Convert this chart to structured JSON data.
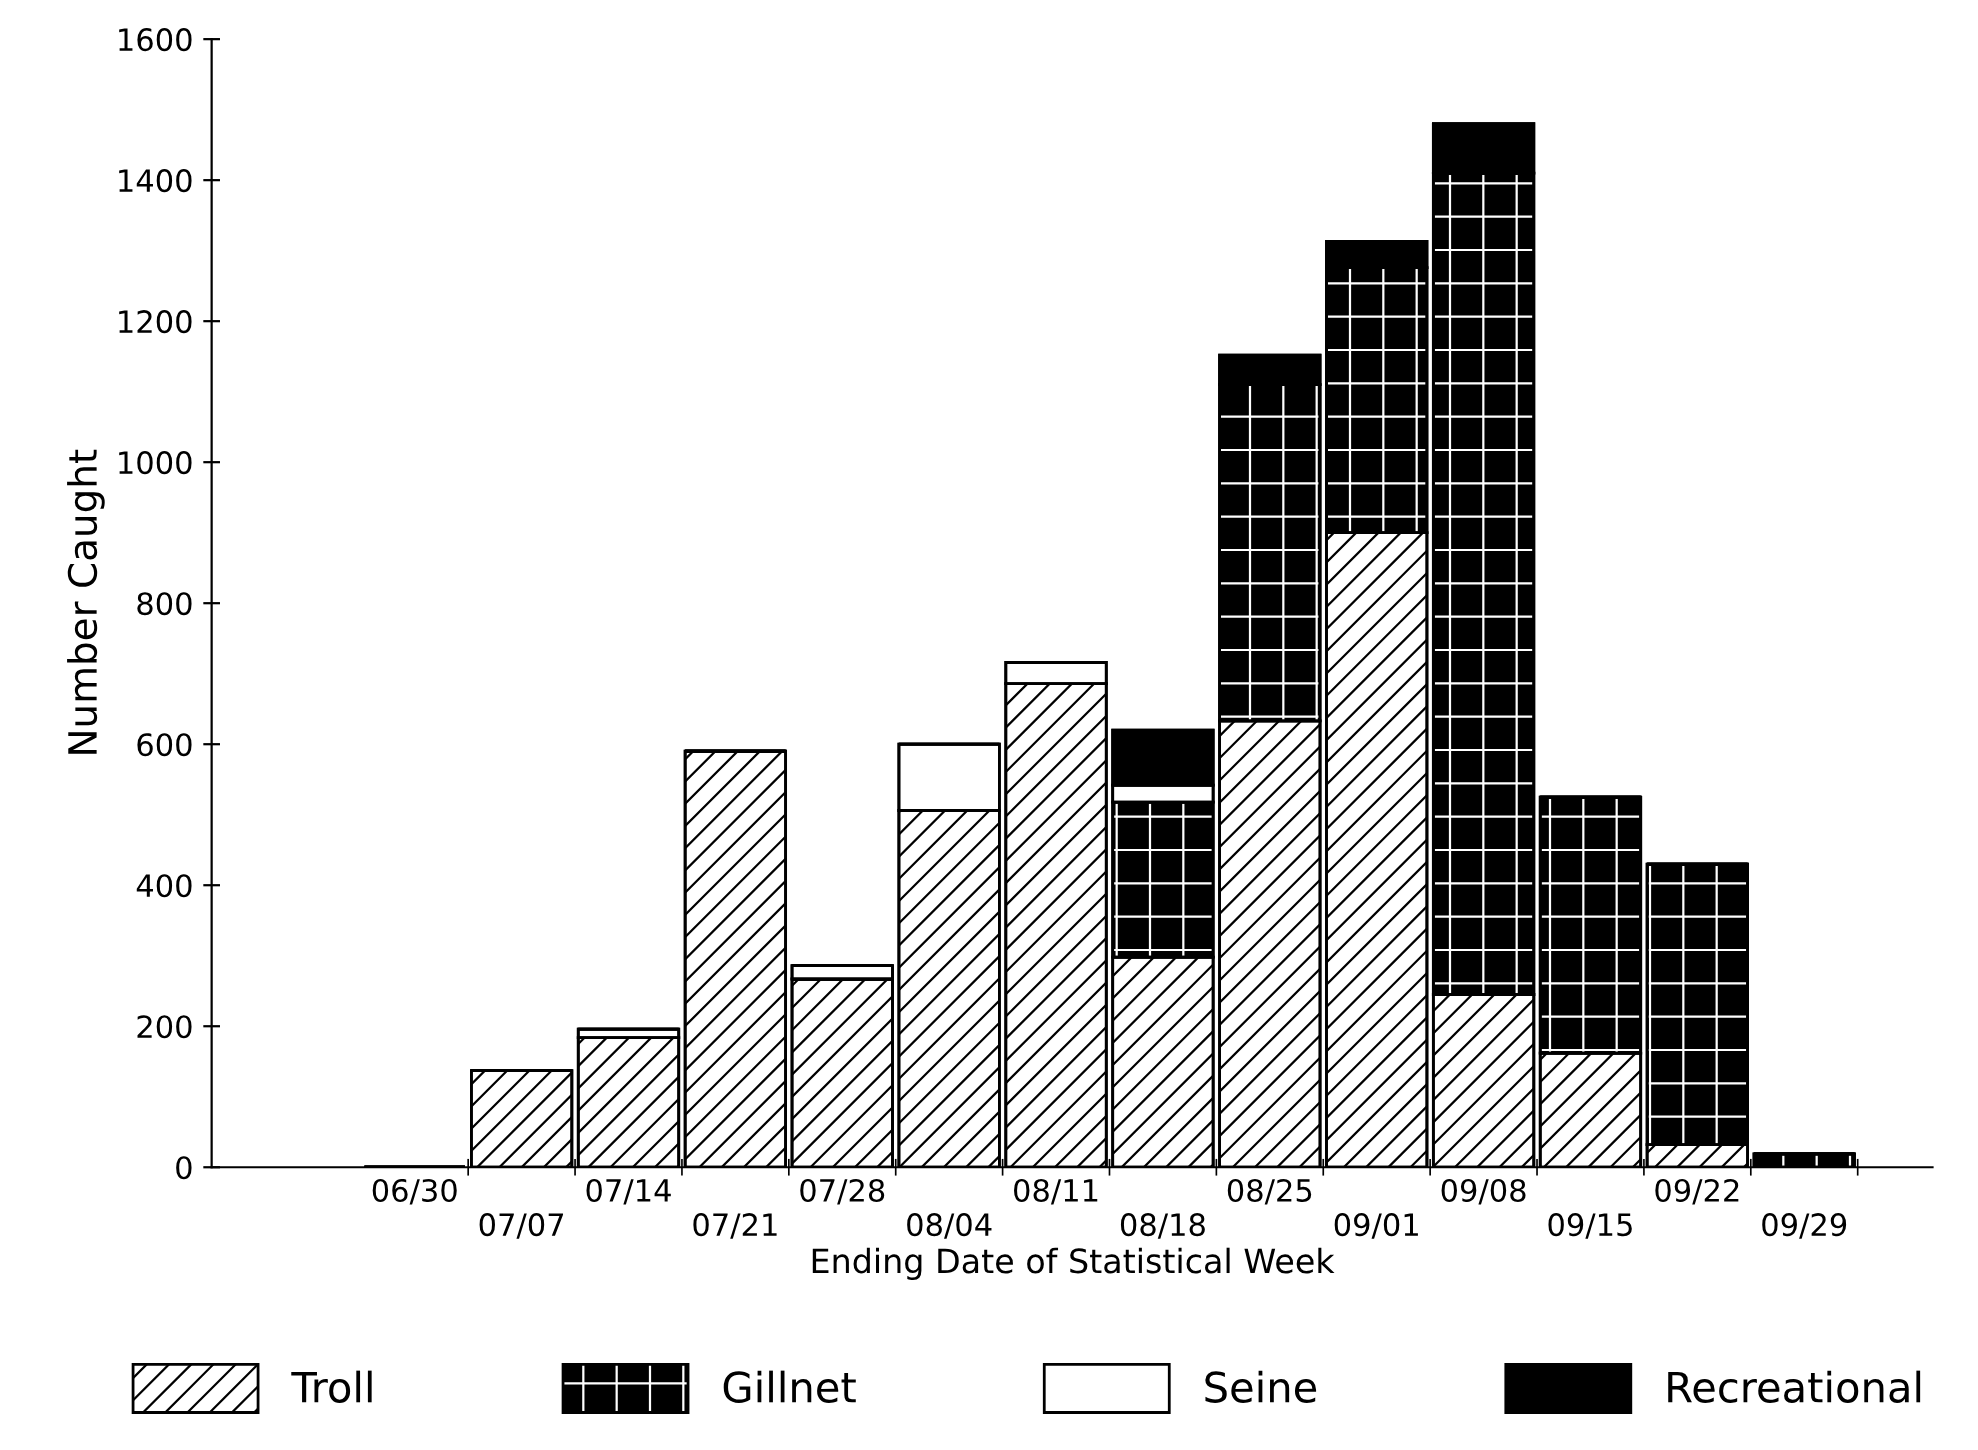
{
  "chart_data": {
    "type": "bar",
    "stacked": true,
    "xlabel": "Ending Date of Statistical Week",
    "ylabel": "Number Caught",
    "categories": [
      "06/30",
      "07/07",
      "07/14",
      "07/21",
      "07/28",
      "08/04",
      "08/11",
      "08/18",
      "08/25",
      "09/01",
      "09/08",
      "09/15",
      "09/22",
      "09/29"
    ],
    "series": [
      {
        "name": "Troll",
        "color": "#000000",
        "values": [
          0,
          137,
          184,
          590,
          267,
          506,
          686,
          298,
          633,
          900,
          245,
          162,
          32,
          0
        ]
      },
      {
        "name": "Gillnet",
        "color": "#000000",
        "values": [
          0,
          0,
          0,
          0,
          0,
          0,
          0,
          220,
          477,
          376,
          1165,
          363,
          398,
          19
        ]
      },
      {
        "name": "Seine",
        "color": "#ffffff",
        "values": [
          0,
          0,
          12,
          0,
          19,
          94,
          30,
          24,
          0,
          0,
          0,
          0,
          0,
          0
        ]
      },
      {
        "name": "Recreational",
        "color": "#000000",
        "values": [
          0,
          0,
          0,
          0,
          0,
          0,
          0,
          78,
          42,
          37,
          70,
          0,
          0,
          0
        ]
      }
    ],
    "ylim": [
      0,
      1600
    ],
    "yticks": [
      0,
      200,
      400,
      600,
      800,
      1000,
      1200,
      1400,
      1600
    ],
    "grid": false,
    "legend": "bottom"
  }
}
